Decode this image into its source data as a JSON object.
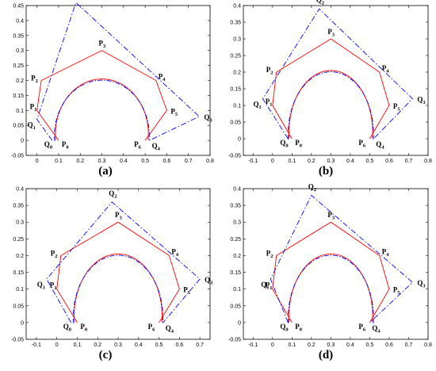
{
  "chart_data": [
    {
      "type": "line",
      "caption": "(a)",
      "xlim": [
        -0.05,
        0.8
      ],
      "ylim": [
        -0.05,
        0.45
      ],
      "xticks": [
        "0",
        "0.1",
        "0.2",
        "0.3",
        "0.4",
        "0.5",
        "0.6",
        "0.7",
        "0.8"
      ],
      "yticks": [
        "-0.05",
        "0",
        "0.05",
        "0.1",
        "0.15",
        "0.2",
        "0.25",
        "0.3",
        "0.35",
        "0.4",
        "0.45"
      ],
      "series": [
        {
          "color": "#ff0000",
          "style": "solid",
          "points": [
            [
              0.1,
              0
            ],
            [
              0,
              0.1
            ],
            [
              0.02,
              0.2
            ],
            [
              0.3,
              0.3
            ],
            [
              0.55,
              0.2
            ],
            [
              0.6,
              0.1
            ],
            [
              0.5,
              0
            ]
          ]
        },
        {
          "color": "#0000ff",
          "style": "dashdot",
          "points": [
            [
              0.07,
              0
            ],
            [
              0,
              0.07
            ],
            [
              0.18,
              0.46
            ],
            [
              0.75,
              0.08
            ],
            [
              0.52,
              0
            ]
          ]
        }
      ],
      "labels": [
        {
          "text": "Q",
          "sub": "0",
          "x": 0.07,
          "y": 0
        },
        {
          "text": "P",
          "sub": "0",
          "x": 0.1,
          "y": 0
        },
        {
          "text": "Q",
          "sub": "1",
          "x": 0,
          "y": 0.07
        },
        {
          "text": "P",
          "sub": "1",
          "x": 0,
          "y": 0.1
        },
        {
          "text": "P",
          "sub": "2",
          "x": 0.02,
          "y": 0.2
        },
        {
          "text": "Q",
          "sub": "2",
          "x": 0.18,
          "y": 0.46
        },
        {
          "text": "P",
          "sub": "3",
          "x": 0.3,
          "y": 0.3
        },
        {
          "text": "P",
          "sub": "4",
          "x": 0.55,
          "y": 0.2
        },
        {
          "text": "P",
          "sub": "5",
          "x": 0.6,
          "y": 0.1
        },
        {
          "text": "Q",
          "sub": "3",
          "x": 0.75,
          "y": 0.08
        },
        {
          "text": "P",
          "sub": "6",
          "x": 0.5,
          "y": 0
        },
        {
          "text": "Q",
          "sub": "4",
          "x": 0.52,
          "y": 0
        }
      ]
    },
    {
      "type": "line",
      "caption": "(b)",
      "xlim": [
        -0.15,
        0.8
      ],
      "ylim": [
        -0.05,
        0.4
      ],
      "xticks": [
        "-0.1",
        "0",
        "0.1",
        "0.2",
        "0.3",
        "0.4",
        "0.5",
        "0.6",
        "0.7",
        "0.8"
      ],
      "yticks": [
        "-0.05",
        "0",
        "0.05",
        "0.1",
        "0.15",
        "0.2",
        "0.25",
        "0.3",
        "0.35",
        "0.4"
      ],
      "series": [
        {
          "color": "#ff0000",
          "style": "solid",
          "points": [
            [
              0.1,
              0
            ],
            [
              0,
              0.1
            ],
            [
              0.02,
              0.2
            ],
            [
              0.3,
              0.3
            ],
            [
              0.55,
              0.2
            ],
            [
              0.6,
              0.1
            ],
            [
              0.5,
              0
            ]
          ]
        },
        {
          "color": "#0000ff",
          "style": "dashdot",
          "points": [
            [
              0.08,
              0
            ],
            [
              -0.05,
              0.12
            ],
            [
              0.24,
              0.39
            ],
            [
              0.72,
              0.12
            ],
            [
              0.52,
              0
            ]
          ]
        }
      ],
      "labels": [
        {
          "text": "Q",
          "sub": "0",
          "x": 0.08,
          "y": 0
        },
        {
          "text": "P",
          "sub": "0",
          "x": 0.1,
          "y": 0
        },
        {
          "text": "Q",
          "sub": "1",
          "x": -0.05,
          "y": 0.12
        },
        {
          "text": "P",
          "sub": "1",
          "x": 0,
          "y": 0.1
        },
        {
          "text": "P",
          "sub": "2",
          "x": 0.02,
          "y": 0.2
        },
        {
          "text": "Q",
          "sub": "2",
          "x": 0.24,
          "y": 0.39
        },
        {
          "text": "P",
          "sub": "3",
          "x": 0.3,
          "y": 0.3
        },
        {
          "text": "P",
          "sub": "4",
          "x": 0.55,
          "y": 0.2
        },
        {
          "text": "P",
          "sub": "5",
          "x": 0.6,
          "y": 0.1
        },
        {
          "text": "Q",
          "sub": "3",
          "x": 0.72,
          "y": 0.12
        },
        {
          "text": "P",
          "sub": "6",
          "x": 0.5,
          "y": 0
        },
        {
          "text": "Q",
          "sub": "4",
          "x": 0.52,
          "y": 0
        }
      ]
    },
    {
      "type": "line",
      "caption": "(c)",
      "xlim": [
        -0.15,
        0.75
      ],
      "ylim": [
        -0.05,
        0.4
      ],
      "xticks": [
        "-0.1",
        "0",
        "0.1",
        "0.2",
        "0.3",
        "0.4",
        "0.5",
        "0.6",
        "0.7"
      ],
      "yticks": [
        "-0.05",
        "0",
        "0.05",
        "0.1",
        "0.15",
        "0.2",
        "0.25",
        "0.3",
        "0.35",
        "0.4"
      ],
      "series": [
        {
          "color": "#ff0000",
          "style": "solid",
          "points": [
            [
              0.1,
              0
            ],
            [
              0,
              0.1
            ],
            [
              0.02,
              0.2
            ],
            [
              0.3,
              0.3
            ],
            [
              0.55,
              0.2
            ],
            [
              0.6,
              0.1
            ],
            [
              0.5,
              0
            ]
          ]
        },
        {
          "color": "#0000ff",
          "style": "dashdot",
          "points": [
            [
              0.07,
              0
            ],
            [
              -0.05,
              0.13
            ],
            [
              0.27,
              0.36
            ],
            [
              0.7,
              0.13
            ],
            [
              0.52,
              0
            ]
          ]
        }
      ],
      "labels": [
        {
          "text": "Q",
          "sub": "0",
          "x": 0.07,
          "y": 0
        },
        {
          "text": "P",
          "sub": "0",
          "x": 0.1,
          "y": 0
        },
        {
          "text": "Q",
          "sub": "1",
          "x": -0.05,
          "y": 0.13
        },
        {
          "text": "P",
          "sub": "1",
          "x": 0,
          "y": 0.1
        },
        {
          "text": "P",
          "sub": "2",
          "x": 0.02,
          "y": 0.2
        },
        {
          "text": "Q",
          "sub": "2",
          "x": 0.27,
          "y": 0.36
        },
        {
          "text": "P",
          "sub": "3",
          "x": 0.3,
          "y": 0.3
        },
        {
          "text": "P",
          "sub": "4",
          "x": 0.55,
          "y": 0.2
        },
        {
          "text": "P",
          "sub": "5",
          "x": 0.6,
          "y": 0.1
        },
        {
          "text": "Q",
          "sub": "3",
          "x": 0.7,
          "y": 0.13
        },
        {
          "text": "P",
          "sub": "6",
          "x": 0.5,
          "y": 0
        },
        {
          "text": "Q",
          "sub": "4",
          "x": 0.52,
          "y": 0
        }
      ]
    },
    {
      "type": "line",
      "caption": "(d)",
      "xlim": [
        -0.15,
        0.8
      ],
      "ylim": [
        -0.05,
        0.4
      ],
      "xticks": [
        "-0.1",
        "0",
        "0.1",
        "0.2",
        "0.3",
        "0.4",
        "0.5",
        "0.6",
        "0.7",
        "0.8"
      ],
      "yticks": [
        "-0.05",
        "0",
        "0.05",
        "0.1",
        "0.15",
        "0.2",
        "0.25",
        "0.3",
        "0.35",
        "0.4"
      ],
      "series": [
        {
          "color": "#ff0000",
          "style": "solid",
          "points": [
            [
              0.1,
              0
            ],
            [
              0,
              0.1
            ],
            [
              0.02,
              0.2
            ],
            [
              0.3,
              0.3
            ],
            [
              0.55,
              0.2
            ],
            [
              0.6,
              0.1
            ],
            [
              0.5,
              0
            ]
          ]
        },
        {
          "color": "#0000ff",
          "style": "dashdot",
          "points": [
            [
              0.08,
              0
            ],
            [
              -0.01,
              0.13
            ],
            [
              0.2,
              0.38
            ],
            [
              0.72,
              0.12
            ],
            [
              0.5,
              0
            ]
          ]
        }
      ],
      "labels": [
        {
          "text": "Q",
          "sub": "0",
          "x": 0.08,
          "y": 0
        },
        {
          "text": "P",
          "sub": "0",
          "x": 0.1,
          "y": 0
        },
        {
          "text": "Q",
          "sub": "1",
          "x": -0.01,
          "y": 0.13
        },
        {
          "text": "P",
          "sub": "1",
          "x": 0,
          "y": 0.1
        },
        {
          "text": "P",
          "sub": "2",
          "x": 0.02,
          "y": 0.2
        },
        {
          "text": "Q",
          "sub": "2",
          "x": 0.2,
          "y": 0.38
        },
        {
          "text": "P",
          "sub": "3",
          "x": 0.3,
          "y": 0.3
        },
        {
          "text": "P",
          "sub": "4",
          "x": 0.55,
          "y": 0.2
        },
        {
          "text": "P",
          "sub": "5",
          "x": 0.6,
          "y": 0.1
        },
        {
          "text": "Q",
          "sub": "3",
          "x": 0.72,
          "y": 0.12
        },
        {
          "text": "P",
          "sub": "6",
          "x": 0.5,
          "y": 0
        },
        {
          "text": "Q",
          "sub": "4",
          "x": 0.5,
          "y": 0
        }
      ]
    }
  ]
}
